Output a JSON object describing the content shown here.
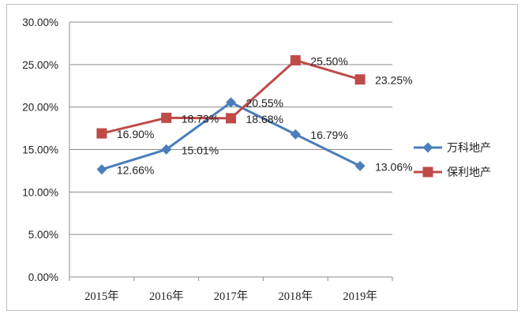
{
  "chart_data": {
    "type": "line",
    "categories": [
      "2015年",
      "2016年",
      "2017年",
      "2018年",
      "2019年"
    ],
    "ylim": [
      0,
      30
    ],
    "yticks": [
      "0.00%",
      "5.00%",
      "10.00%",
      "15.00%",
      "20.00%",
      "25.00%",
      "30.00%"
    ],
    "grid": true,
    "legend_position": "right",
    "series": [
      {
        "name": "万科地产",
        "values": [
          12.66,
          15.01,
          20.55,
          16.79,
          13.06
        ],
        "labels": [
          "12.66%",
          "15.01%",
          "20.55%",
          "16.79%",
          "13.06%"
        ],
        "color": "#4a7ebb",
        "marker": "diamond"
      },
      {
        "name": "保利地产",
        "values": [
          16.9,
          18.73,
          18.68,
          25.5,
          23.25
        ],
        "labels": [
          "16.90%",
          "18.73%",
          "18.68%",
          "25.50%",
          "23.25%"
        ],
        "color": "#be4b48",
        "marker": "square"
      }
    ]
  }
}
